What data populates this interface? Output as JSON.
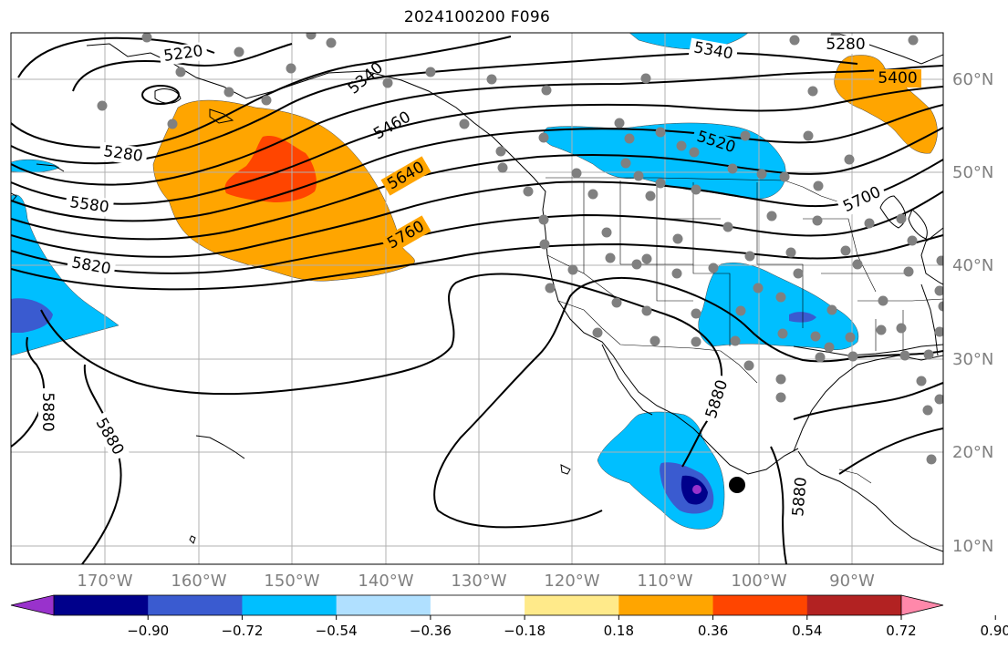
{
  "title": "2024100200 F096",
  "lon_labels": [
    "170°W",
    "160°W",
    "150°W",
    "140°W",
    "130°W",
    "120°W",
    "110°W",
    "100°W",
    "90°W"
  ],
  "lat_labels": [
    "60°N",
    "50°N",
    "40°N",
    "30°N",
    "20°N",
    "10°N"
  ],
  "colorbar": {
    "colors": [
      "#9932cc",
      "#00008b",
      "#3a5bd0",
      "#00bfff",
      "#b0e0ff",
      "#ffffff",
      "#ffea8a",
      "#ffa500",
      "#ff4500",
      "#b22222",
      "#ff88aa"
    ],
    "tick_labels": [
      "−0.90",
      "−0.72",
      "−0.54",
      "−0.36",
      "−0.18",
      "0.18",
      "0.36",
      "0.54",
      "0.72",
      "0.90"
    ]
  },
  "contour_labels": [
    {
      "id": "5220a",
      "text": "5220"
    },
    {
      "id": "5340a",
      "text": "5340"
    },
    {
      "id": "5340b",
      "text": "5340"
    },
    {
      "id": "5280a",
      "text": "5280"
    },
    {
      "id": "5280b",
      "text": "5280"
    },
    {
      "id": "5400a",
      "text": "5400"
    },
    {
      "id": "5460a",
      "text": "5460"
    },
    {
      "id": "5520a",
      "text": "5520"
    },
    {
      "id": "5580a",
      "text": "5580"
    },
    {
      "id": "5640a",
      "text": "5640"
    },
    {
      "id": "5700a",
      "text": "5700"
    },
    {
      "id": "5760a",
      "text": "5760"
    },
    {
      "id": "5820a",
      "text": "5820"
    },
    {
      "id": "5880a",
      "text": "5880"
    },
    {
      "id": "5880b",
      "text": "5880"
    },
    {
      "id": "5880c",
      "text": "5880"
    },
    {
      "id": "5880d",
      "text": "5880"
    }
  ],
  "colors": {
    "station": "#808080",
    "contour": "#000000",
    "grid": "#b0b0b0",
    "axis_label": "#808080"
  }
}
